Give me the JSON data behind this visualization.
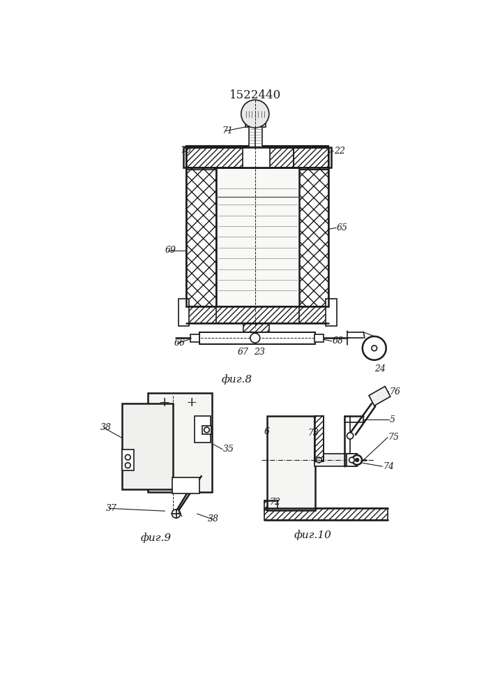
{
  "title": "1522440",
  "line_color": "#1a1a1a",
  "fig8_caption": "фиг.8",
  "fig9_caption": "фиг.9",
  "fig10_caption": "фиг.10"
}
